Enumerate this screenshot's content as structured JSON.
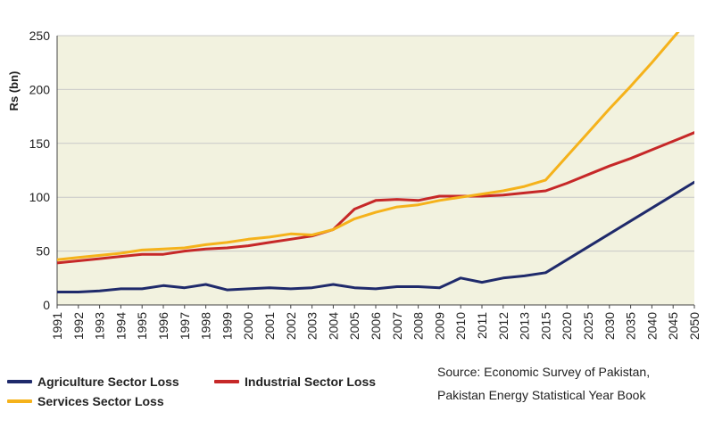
{
  "chart_data": {
    "type": "line",
    "title": "",
    "xlabel": "",
    "ylabel": "Rs (bn)",
    "ylim": [
      0,
      250
    ],
    "yticks": [
      0,
      50,
      100,
      150,
      200,
      250
    ],
    "grid": "horizontal",
    "categories": [
      "1991",
      "1992",
      "1993",
      "1994",
      "1995",
      "1996",
      "1997",
      "1998",
      "1999",
      "2000",
      "2001",
      "2002",
      "2003",
      "2004",
      "2005",
      "2006",
      "2007",
      "2008",
      "2009",
      "2010",
      "2011",
      "2012",
      "2013",
      "2015",
      "2020",
      "2025",
      "2030",
      "2035",
      "2040",
      "2045",
      "2050"
    ],
    "series": [
      {
        "name": "Agriculture Sector Loss",
        "color": "#1f2a6b",
        "values": [
          12,
          12,
          13,
          15,
          15,
          18,
          16,
          19,
          14,
          15,
          16,
          15,
          16,
          19,
          16,
          15,
          17,
          17,
          16,
          25,
          21,
          25,
          27,
          30,
          42,
          54,
          66,
          78,
          90,
          102,
          114
        ]
      },
      {
        "name": "Industrial Sector Loss",
        "color": "#c62828",
        "values": [
          39,
          41,
          43,
          45,
          47,
          47,
          50,
          52,
          53,
          55,
          58,
          61,
          64,
          70,
          89,
          97,
          98,
          97,
          101,
          101,
          101,
          102,
          104,
          106,
          113,
          121,
          129,
          136,
          144,
          152,
          160
        ]
      },
      {
        "name": "Services Sector Loss",
        "color": "#f5b21b",
        "values": [
          42,
          44,
          46,
          48,
          51,
          52,
          53,
          56,
          58,
          61,
          63,
          66,
          65,
          70,
          80,
          86,
          91,
          93,
          97,
          100,
          103,
          106,
          110,
          116,
          138,
          160,
          182,
          203,
          225,
          248,
          271
        ]
      }
    ],
    "legend": {
      "placement": "bottom-left",
      "entries": [
        "Agriculture Sector Loss",
        "Industrial Sector Loss",
        "Services Sector Loss"
      ]
    }
  },
  "source": {
    "line1": "Source: Economic Survey of Pakistan,",
    "line2": "Pakistan Energy Statistical Year Book"
  },
  "colors": {
    "plot_background": "#f2f2df",
    "gridline": "#c8c8c8",
    "axis": "#444444"
  }
}
